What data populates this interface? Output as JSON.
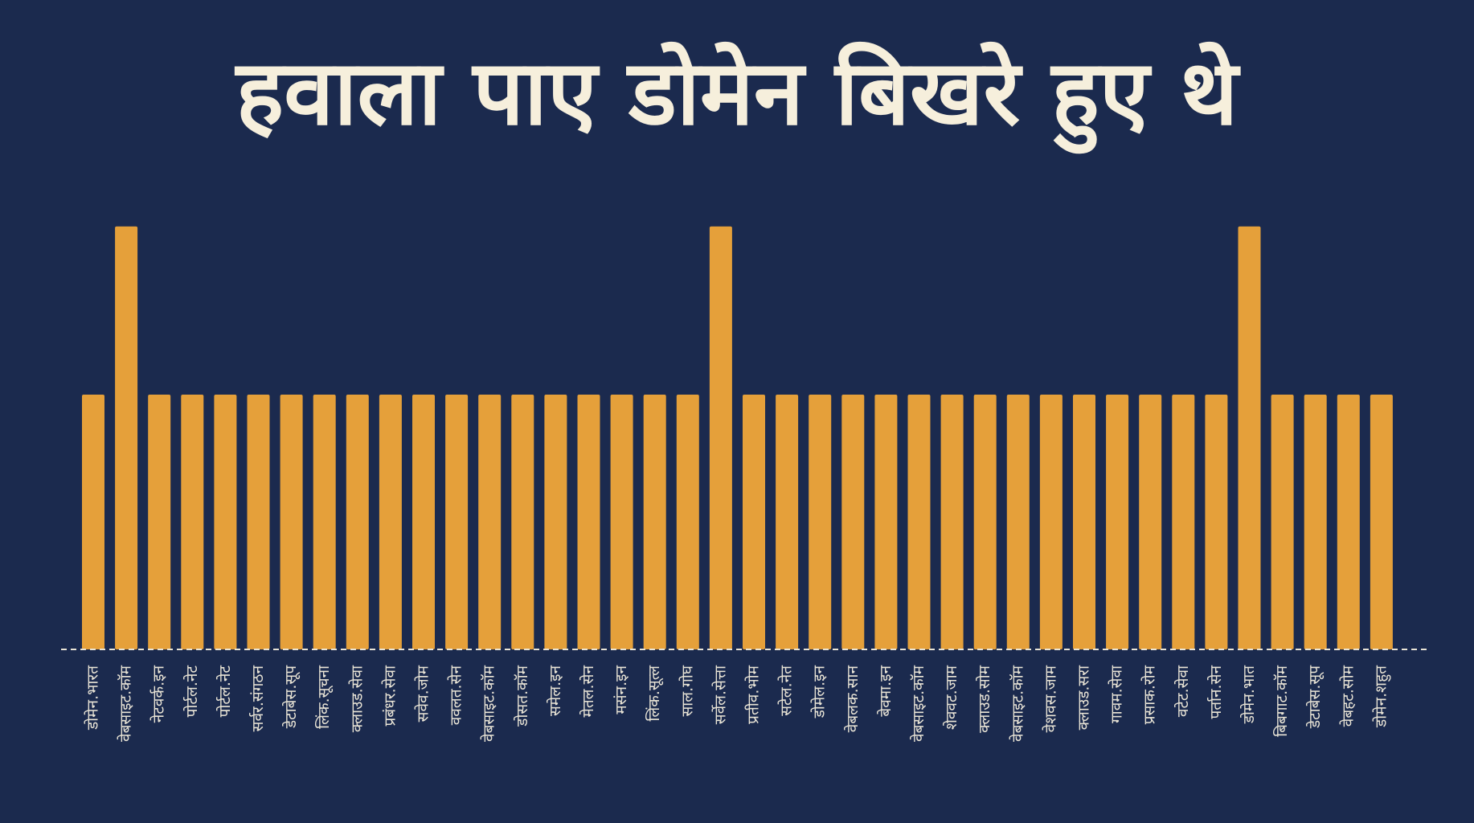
{
  "title": "हवाला पाए डोमेन बिखरे हुए थे",
  "colors": {
    "background": "#1b2a4e",
    "bar": "#e5a03a",
    "title": "#f6efdc",
    "labels": "#e9e4d6"
  },
  "chart_data": {
    "type": "bar",
    "title": "हवाला पाए डोमेन बिखरे हुए थे",
    "xlabel": "",
    "ylabel": "",
    "ylim": [
      0,
      2
    ],
    "grid": false,
    "legend": "none",
    "categories": [
      "डोमेन.भारत",
      "वेबसाइट.कॉम",
      "नेटवर्क.इन",
      "पोर्टल.नेट",
      "पोर्टल.नेट",
      "सर्वर.संगठन",
      "डेटाबेस.सूप",
      "लिंक.सूचना",
      "क्लाउड.सेवा",
      "प्रबंधर.सेवा",
      "सवेव.जोम",
      "ववलत.सेन",
      "वेबसाइट.कॉम",
      "डोसत.कॉम",
      "समेल.इन",
      "मेतल.सेन",
      "मसंन.इन",
      "लिंक.सूत्ल",
      "साल.गोघ",
      "सर्वेल.सेत्ता",
      "प्रतीव.भोम",
      "सटेल.नेत",
      "डोमेल.इन",
      "वेबलक.सान",
      "बेवमा.इन",
      "वेबसाइट.कॉम",
      "शेववट.जाम",
      "क्लाउड.सोम",
      "वेबसाइट.कॉम",
      "वेशवस.जाम",
      "क्लाउड.सरा",
      "गावम.सेवा",
      "प्रसाक.रोम",
      "वटेट.सेवा",
      "पर्तान.सेन",
      "डोमेन.भात",
      "बिबगाट.कॉम",
      "डेटाबेस.सूप",
      "वेबहट.सोम",
      "डोमेन.शहुत"
    ],
    "values": [
      1,
      1.66,
      1,
      1,
      1,
      1,
      1,
      1,
      1,
      1,
      1,
      1,
      1,
      1,
      1,
      1,
      1,
      1,
      1,
      1.66,
      1,
      1,
      1,
      1,
      1,
      1,
      1,
      1,
      1,
      1,
      1,
      1,
      1,
      1,
      1,
      1.66,
      1,
      1,
      1,
      1
    ]
  }
}
